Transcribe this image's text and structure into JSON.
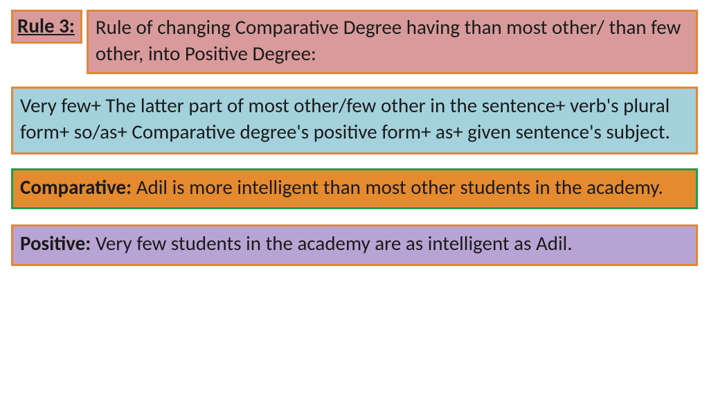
{
  "rule_label": "Rule 3:",
  "rule_title": "Rule of changing Comparative Degree having than most other/ than few other, into Positive Degree:",
  "formula": "Very few+ The latter part of most other/few other in the sentence+ verb's plural form+ so/as+ Comparative degree's positive form+ as+ given sentence's subject.",
  "comparative_label": "Comparative: ",
  "comparative_text": "Adil is more intelligent than most other students in the academy.",
  "positive_label": "Positive: ",
  "positive_text": "Very few students in the academy are as intelligent as Adil.",
  "colors": {
    "pink_bg": "#d89a9a",
    "orange_border": "#e0873a",
    "blue_bg": "#a3d1dc",
    "orange_bg": "#e58a2e",
    "green_border": "#1fa04a",
    "purple_bg": "#b8a4d4",
    "text": "#1a1a1a"
  }
}
